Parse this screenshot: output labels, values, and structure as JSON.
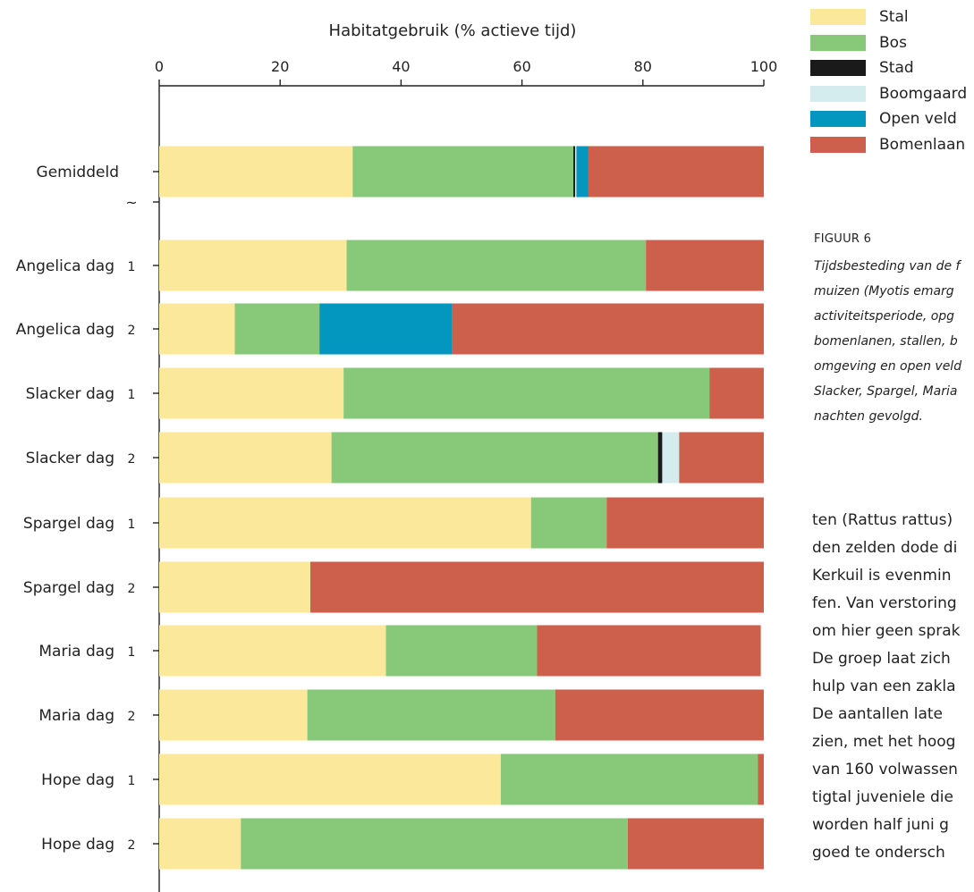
{
  "chart_data": {
    "type": "bar",
    "orientation": "horizontal",
    "stacked": true,
    "title": "Habitatgebruik (% actieve tijd)",
    "xlim": [
      0,
      100
    ],
    "x_ticks": [
      "0",
      "20",
      "40",
      "60",
      "80",
      "100"
    ],
    "axis_break_label": "~",
    "categories": [
      {
        "label": "Gemiddeld",
        "day": ""
      },
      {
        "label": "Angelica dag",
        "day": "1"
      },
      {
        "label": "Angelica dag",
        "day": "2"
      },
      {
        "label": "Slacker dag",
        "day": "1"
      },
      {
        "label": "Slacker dag",
        "day": "2"
      },
      {
        "label": "Spargel dag",
        "day": "1"
      },
      {
        "label": "Spargel dag",
        "day": "2"
      },
      {
        "label": "Maria dag",
        "day": "1"
      },
      {
        "label": "Maria dag",
        "day": "2"
      },
      {
        "label": "Hope dag",
        "day": "1"
      },
      {
        "label": "Hope dag",
        "day": "2"
      }
    ],
    "series": [
      {
        "name": "Stal",
        "color": "#FCE89A",
        "values": [
          32,
          31,
          12.5,
          30.5,
          28.5,
          61.5,
          25,
          37.5,
          24.5,
          56.5,
          13.5
        ]
      },
      {
        "name": "Bos",
        "color": "#87C879",
        "values": [
          36.5,
          49.5,
          14,
          60.5,
          54,
          12.5,
          0,
          25,
          41,
          42.5,
          64
        ]
      },
      {
        "name": "Stad",
        "color": "#1A1A1A",
        "values": [
          0.3,
          0,
          0,
          0,
          0.7,
          0,
          0,
          0,
          0,
          0,
          0
        ]
      },
      {
        "name": "Boomgaard",
        "color": "#D5ECEE",
        "values": [
          0.2,
          0,
          0,
          0,
          2.8,
          0,
          0,
          0,
          0,
          0,
          0
        ]
      },
      {
        "name": "Open veld",
        "color": "#0397C0",
        "values": [
          2,
          0,
          22,
          0,
          0,
          0,
          0,
          0,
          0,
          0,
          0
        ]
      },
      {
        "name": "Bomenlaan",
        "color": "#CC604D",
        "values": [
          29,
          19.5,
          51.5,
          9,
          14,
          26,
          75,
          37,
          34.5,
          1,
          22.5
        ]
      }
    ]
  },
  "caption": {
    "heading": "FIGUUR 6",
    "lines": [
      "Tijdsbesteding van de f",
      "muizen (Myotis emarg",
      "activiteitsperiode, opg",
      "bomenlanen, stallen, b",
      "omgeving en open veld",
      "Slacker, Spargel, Maria",
      "nachten gevolgd."
    ]
  },
  "body_text": [
    "ten (Rattus rattus)",
    "den zelden dode di",
    "Kerkuil is evenmin",
    "fen. Van verstoring",
    "om hier geen sprak",
    "De groep laat zich",
    "hulp van een zakla",
    "De aantallen late",
    "zien, met het hoog",
    "van 160 volwassen",
    "tigtal juveniele die",
    "worden half juni g",
    "goed te ondersch"
  ]
}
